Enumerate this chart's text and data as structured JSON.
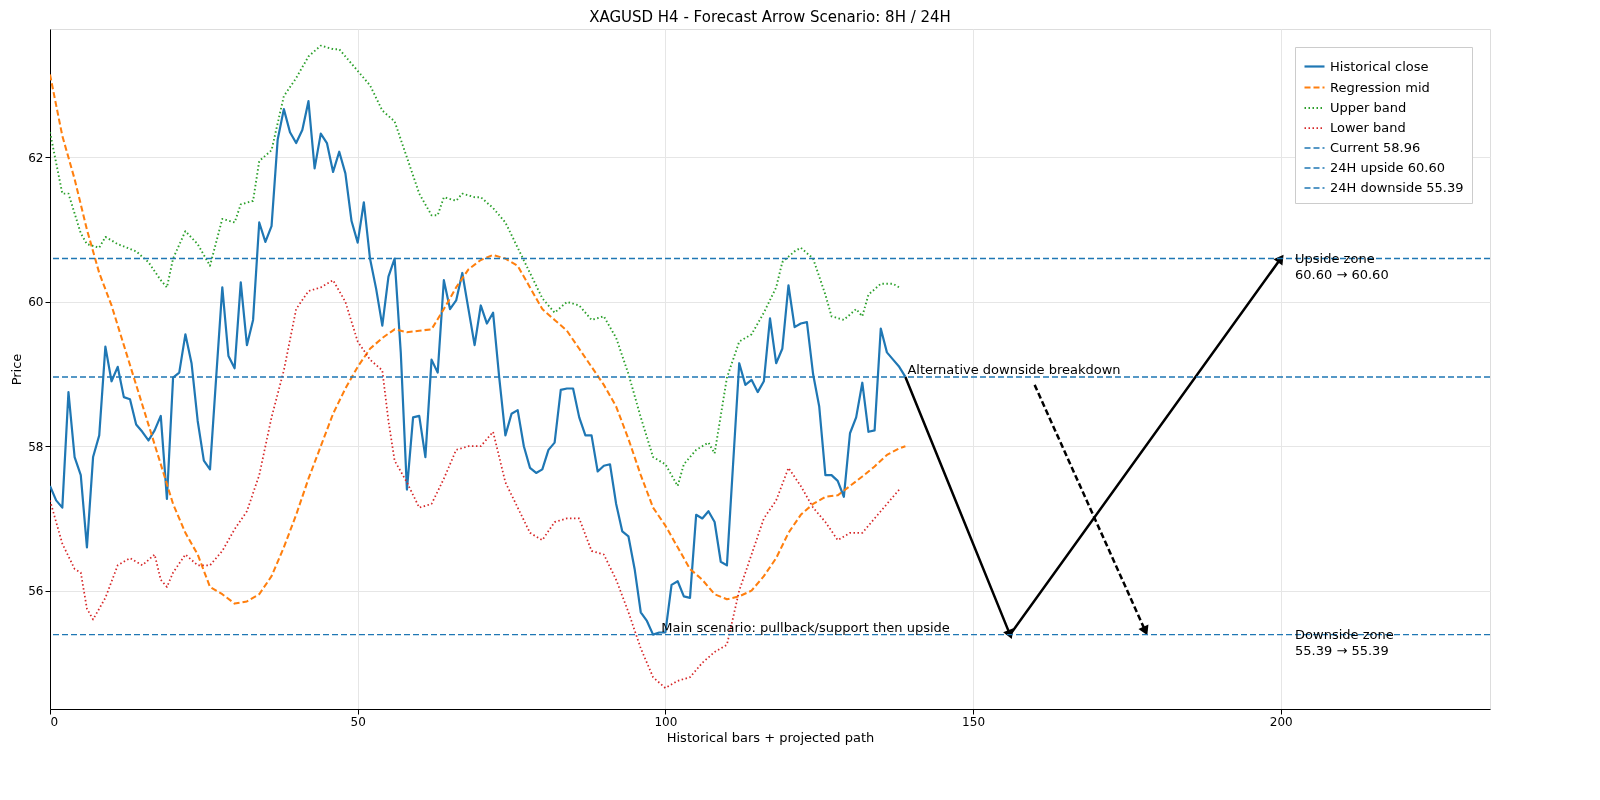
{
  "chart_data": {
    "type": "line",
    "title": "XAGUSD H4 - Forecast Arrow Scenario: 8H / 24H",
    "xlabel": "Historical bars + projected path",
    "ylabel": "Price",
    "xlim": [
      0,
      234
    ],
    "ylim": [
      54.36,
      63.78
    ],
    "xticks": [
      0,
      50,
      100,
      150,
      200
    ],
    "yticks": [
      56,
      58,
      60,
      62
    ],
    "grid": true,
    "legend": "top right",
    "series": [
      {
        "name": "Historical close",
        "color": "#1f77b4",
        "line_style": "solid",
        "x": [
          0,
          1,
          2,
          3,
          4,
          5,
          6,
          7,
          8,
          9,
          10,
          11,
          12,
          13,
          14,
          15,
          16,
          17,
          18,
          19,
          20,
          21,
          22,
          23,
          24,
          25,
          26,
          27,
          28,
          29,
          30,
          31,
          32,
          33,
          34,
          35,
          36,
          37,
          38,
          39,
          40,
          41,
          42,
          43,
          44,
          45,
          46,
          47,
          48,
          49,
          50,
          51,
          52,
          53,
          54,
          55,
          56,
          57,
          58,
          59,
          60,
          61,
          62,
          63,
          64,
          65,
          66,
          67,
          68,
          69,
          70,
          71,
          72,
          73,
          74,
          75,
          76,
          77,
          78,
          79,
          80,
          81,
          82,
          83,
          84,
          85,
          86,
          87,
          88,
          89,
          90,
          91,
          92,
          93,
          94,
          95,
          96,
          97,
          98,
          99,
          100,
          101,
          102,
          103,
          104,
          105,
          106,
          107,
          108,
          109,
          110,
          111,
          112,
          113,
          114,
          115,
          116,
          117,
          118,
          119,
          120,
          121,
          122,
          123,
          124,
          125,
          126,
          127,
          128,
          129,
          130,
          131,
          132,
          133,
          134,
          135,
          136,
          137,
          138,
          139
        ],
        "values": [
          57.45,
          57.25,
          57.15,
          58.75,
          57.85,
          57.6,
          56.6,
          57.85,
          58.15,
          59.38,
          58.9,
          59.1,
          58.68,
          58.65,
          58.3,
          58.2,
          58.08,
          58.22,
          58.42,
          57.27,
          58.95,
          59.02,
          59.55,
          59.15,
          58.35,
          57.8,
          57.68,
          58.95,
          60.2,
          59.25,
          59.08,
          60.27,
          59.4,
          59.75,
          61.1,
          60.83,
          61.05,
          62.25,
          62.67,
          62.35,
          62.2,
          62.38,
          62.78,
          61.85,
          62.33,
          62.2,
          61.8,
          62.08,
          61.78,
          61.12,
          60.82,
          61.38,
          60.6,
          60.18,
          59.67,
          60.35,
          60.6,
          59.3,
          57.4,
          58.4,
          58.42,
          57.85,
          59.2,
          59.02,
          60.3,
          59.9,
          60.02,
          60.4,
          59.9,
          59.4,
          59.95,
          59.7,
          59.85,
          58.95,
          58.15,
          58.45,
          58.5,
          58.0,
          57.7,
          57.63,
          57.68,
          57.95,
          58.05,
          58.78,
          58.8,
          58.8,
          58.4,
          58.15,
          58.15,
          57.65,
          57.73,
          57.75,
          57.2,
          56.82,
          56.75,
          56.3,
          55.7,
          55.58,
          55.39,
          55.42,
          55.42,
          56.08,
          56.13,
          55.92,
          55.9,
          57.05,
          57.0,
          57.1,
          56.95,
          56.4,
          56.35,
          57.75,
          59.15,
          58.85,
          58.92,
          58.75,
          58.9,
          59.77,
          59.15,
          59.35,
          60.23,
          59.65,
          59.7,
          59.72,
          59.0,
          58.55,
          57.6,
          57.6,
          57.52,
          57.3,
          58.18,
          58.4,
          58.88,
          58.2,
          58.22,
          59.63,
          59.3,
          59.2,
          59.1,
          58.96
        ]
      },
      {
        "name": "Regression mid",
        "color": "#ff7f0e",
        "line_style": "dashed",
        "x": [
          0,
          2,
          4,
          6,
          8,
          10,
          12,
          14,
          16,
          18,
          20,
          22,
          24,
          26,
          28,
          30,
          32,
          34,
          36,
          38,
          40,
          42,
          44,
          46,
          48,
          50,
          52,
          54,
          56,
          58,
          60,
          62,
          64,
          66,
          68,
          70,
          72,
          74,
          76,
          78,
          80,
          82,
          84,
          86,
          88,
          90,
          92,
          94,
          96,
          98,
          100,
          102,
          104,
          106,
          108,
          110,
          112,
          114,
          116,
          118,
          120,
          122,
          124,
          126,
          128,
          130,
          132,
          134,
          136,
          138,
          139
        ],
        "values": [
          63.15,
          62.3,
          61.7,
          61.0,
          60.4,
          59.95,
          59.4,
          58.85,
          58.3,
          57.75,
          57.2,
          56.8,
          56.5,
          56.05,
          55.95,
          55.82,
          55.85,
          55.95,
          56.2,
          56.6,
          57.05,
          57.55,
          58.0,
          58.45,
          58.8,
          59.1,
          59.35,
          59.5,
          59.62,
          59.58,
          59.6,
          59.62,
          59.9,
          60.2,
          60.45,
          60.58,
          60.65,
          60.6,
          60.5,
          60.2,
          59.9,
          59.75,
          59.6,
          59.35,
          59.1,
          58.85,
          58.55,
          58.1,
          57.6,
          57.15,
          56.9,
          56.6,
          56.3,
          56.15,
          55.95,
          55.88,
          55.92,
          56.0,
          56.2,
          56.45,
          56.8,
          57.05,
          57.2,
          57.3,
          57.32,
          57.45,
          57.58,
          57.72,
          57.88,
          57.97,
          58.0
        ]
      },
      {
        "name": "Upper band",
        "color": "#2ca02c",
        "line_style": "dotted",
        "x": [
          0,
          2,
          3,
          5,
          6,
          8,
          9,
          11,
          14,
          16,
          18,
          19,
          20,
          22,
          24,
          26,
          28,
          30,
          31,
          33,
          34,
          36,
          38,
          40,
          42,
          44,
          46,
          47,
          49,
          50,
          52,
          54,
          56,
          58,
          60,
          62,
          63,
          64,
          66,
          67,
          69,
          70,
          72,
          74,
          76,
          78,
          80,
          82,
          84,
          86,
          88,
          90,
          92,
          94,
          96,
          98,
          100,
          102,
          103,
          105,
          107,
          108,
          110,
          112,
          114,
          116,
          118,
          119,
          121,
          122,
          124,
          126,
          127,
          129,
          131,
          132,
          133,
          135,
          137,
          138
        ],
        "values": [
          62.35,
          61.5,
          61.5,
          60.95,
          60.8,
          60.75,
          60.9,
          60.8,
          60.7,
          60.55,
          60.3,
          60.2,
          60.6,
          60.98,
          60.8,
          60.5,
          61.15,
          61.1,
          61.35,
          61.4,
          61.95,
          62.1,
          62.85,
          63.1,
          63.4,
          63.55,
          63.5,
          63.5,
          63.3,
          63.2,
          63.0,
          62.65,
          62.5,
          62.0,
          61.5,
          61.2,
          61.2,
          61.45,
          61.4,
          61.5,
          61.45,
          61.45,
          61.3,
          61.1,
          60.75,
          60.4,
          60.05,
          59.85,
          60.0,
          59.95,
          59.75,
          59.8,
          59.5,
          59.0,
          58.4,
          57.85,
          57.75,
          57.45,
          57.75,
          57.95,
          58.05,
          57.9,
          58.95,
          59.45,
          59.55,
          59.85,
          60.2,
          60.55,
          60.7,
          60.75,
          60.6,
          60.1,
          59.8,
          59.75,
          59.9,
          59.8,
          60.1,
          60.25,
          60.25,
          60.2
        ]
      },
      {
        "name": "Lower band",
        "color": "#d62728",
        "line_style": "dotted",
        "x": [
          0,
          2,
          4,
          5,
          6,
          7,
          9,
          11,
          13,
          15,
          17,
          18,
          19,
          20,
          22,
          24,
          26,
          28,
          30,
          32,
          34,
          36,
          38,
          40,
          42,
          44,
          46,
          48,
          50,
          52,
          54,
          55,
          56,
          58,
          60,
          62,
          64,
          66,
          68,
          70,
          72,
          74,
          76,
          78,
          80,
          82,
          84,
          86,
          88,
          90,
          92,
          94,
          96,
          98,
          100,
          102,
          104,
          106,
          108,
          110,
          112,
          114,
          116,
          118,
          120,
          122,
          124,
          126,
          128,
          130,
          132,
          134,
          136,
          138
        ],
        "values": [
          57.25,
          56.65,
          56.3,
          56.25,
          55.75,
          55.6,
          55.9,
          56.35,
          56.45,
          56.35,
          56.5,
          56.15,
          56.05,
          56.25,
          56.5,
          56.35,
          56.35,
          56.55,
          56.85,
          57.1,
          57.6,
          58.4,
          59.05,
          59.9,
          60.15,
          60.2,
          60.3,
          60.0,
          59.45,
          59.2,
          59.05,
          58.35,
          57.8,
          57.5,
          57.15,
          57.2,
          57.55,
          57.95,
          58.0,
          58.0,
          58.2,
          57.5,
          57.15,
          56.8,
          56.7,
          56.95,
          57.0,
          57.0,
          56.55,
          56.5,
          56.15,
          55.7,
          55.2,
          54.8,
          54.65,
          54.75,
          54.8,
          55.0,
          55.15,
          55.25,
          56.0,
          56.5,
          57.0,
          57.25,
          57.7,
          57.45,
          57.15,
          56.95,
          56.7,
          56.8,
          56.8,
          57.0,
          57.2,
          57.4
        ]
      },
      {
        "type": "line",
        "color": "#000000",
        "line_style": "solid",
        "marker": "triangle",
        "x": [
          139,
          156,
          200
        ],
        "values": [
          58.96,
          55.39,
          60.6
        ]
      },
      {
        "type": "line",
        "color": "#000000",
        "line_style": "dashed",
        "marker": "triangle",
        "x": [
          160,
          178
        ],
        "values": [
          58.85,
          55.44
        ]
      }
    ],
    "ref_lines": [
      {
        "axis": "y",
        "value": 58.96,
        "label": "Current 58.96",
        "color": "#1f77b4",
        "line_style": "dashed"
      },
      {
        "axis": "y",
        "value": 60.6,
        "label": "24H upside 60.60",
        "color": "#1f77b4",
        "line_style": "dashed"
      },
      {
        "axis": "y",
        "value": 55.39,
        "label": "24H downside 55.39",
        "color": "#1f77b4",
        "line_style": "dashed"
      }
    ],
    "annotations": [
      {
        "text": "Alternative downside breakdown",
        "x": 139,
        "y": 58.96
      },
      {
        "text": "Main scenario: pullback/support then upside",
        "x": 99,
        "y": 55.39
      },
      {
        "text": "Upside zone\n60.60 → 60.60",
        "x": 202,
        "y": 60.6
      },
      {
        "text": "Downside zone\n55.39 → 55.39",
        "x": 202,
        "y": 55.39
      }
    ]
  }
}
